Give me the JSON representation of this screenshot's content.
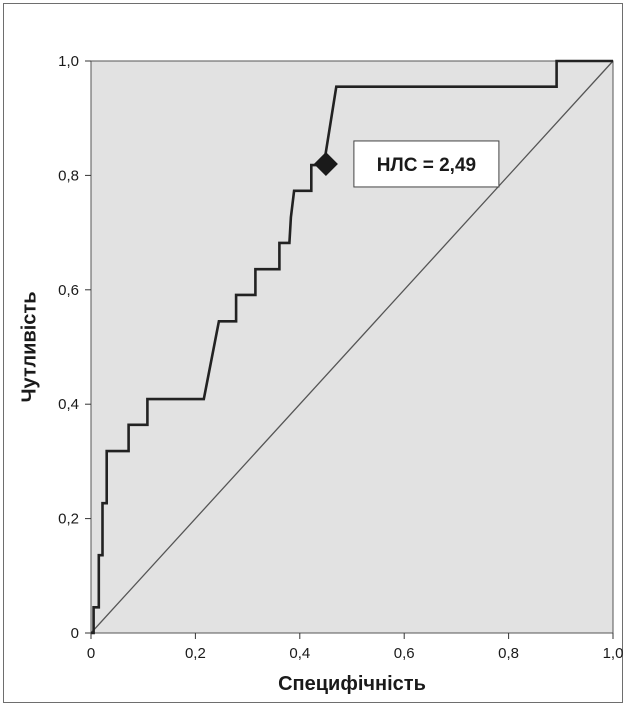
{
  "chart_data": {
    "type": "line",
    "title": "",
    "xlabel": "Специфічність",
    "ylabel": "Чутливість",
    "xlim": [
      0,
      1
    ],
    "ylim": [
      0,
      1
    ],
    "grid": false,
    "x_ticks": [
      "0",
      "0,2",
      "0,4",
      "0,6",
      "0,8",
      "1,0"
    ],
    "y_ticks": [
      "0",
      "0,2",
      "0,4",
      "0,6",
      "0,8",
      "1,0"
    ],
    "colors": {
      "plot_background": "#e2e2e2",
      "roc_line": "#222222",
      "diagonal": "#555555",
      "marker": "#1a1a1a"
    },
    "series": [
      {
        "x": [
          0,
          0.005,
          0.005,
          0.015,
          0.015,
          0.022,
          0.022,
          0.03,
          0.03,
          0.037,
          0.037,
          0.072,
          0.072,
          0.108,
          0.108,
          0.216,
          0.245,
          0.278,
          0.278,
          0.305,
          0.305,
          0.315,
          0.315,
          0.361,
          0.361,
          0.38,
          0.38,
          0.383,
          0.389,
          0.389,
          0.422,
          0.422,
          0.446,
          0.47,
          0.892,
          0.892,
          1.0
        ],
        "y": [
          0,
          0,
          0.045,
          0.045,
          0.136,
          0.136,
          0.227,
          0.227,
          0.318,
          0.318,
          0.318,
          0.318,
          0.364,
          0.364,
          0.409,
          0.409,
          0.545,
          0.545,
          0.591,
          0.591,
          0.591,
          0.591,
          0.636,
          0.636,
          0.682,
          0.682,
          0.682,
          0.727,
          0.773,
          0.773,
          0.773,
          0.818,
          0.818,
          0.955,
          0.955,
          1.0,
          1.0
        ]
      },
      {
        "x": [
          0,
          1
        ],
        "y": [
          0,
          1
        ]
      }
    ],
    "annotations": [
      {
        "text": "НЛС = 2,49",
        "point": {
          "x": 0.45,
          "y": 0.82
        }
      }
    ]
  }
}
